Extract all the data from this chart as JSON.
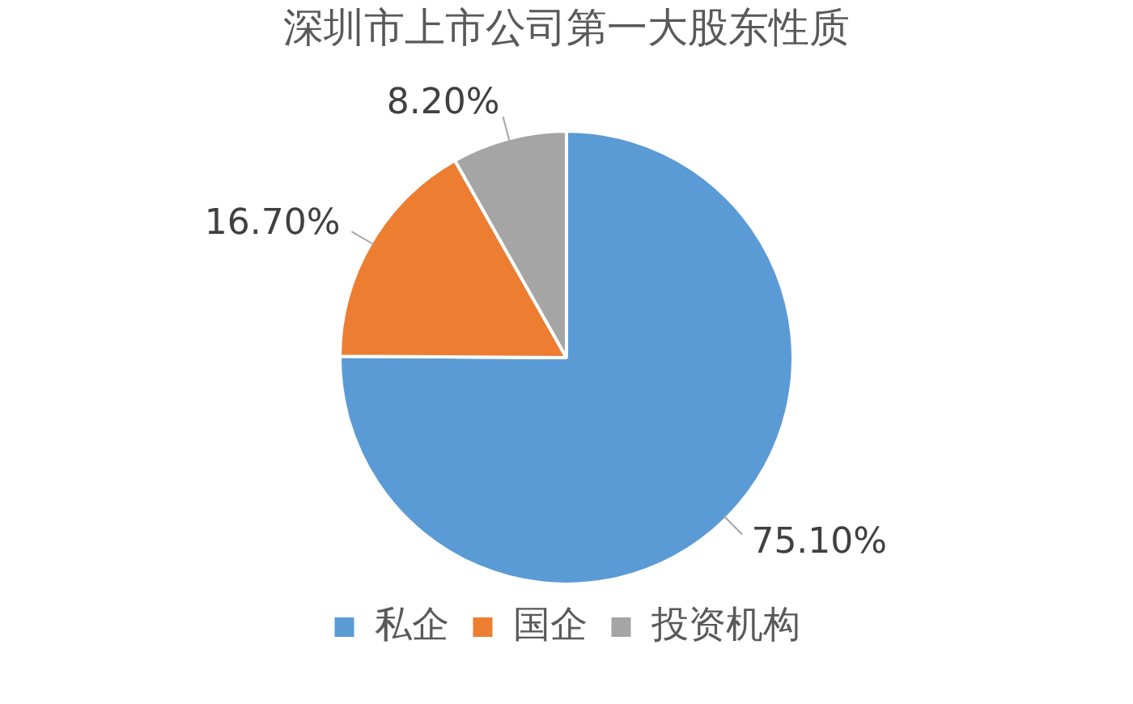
{
  "chart_data": {
    "type": "pie",
    "title": "深圳市上市公司第一大股东性质",
    "categories": [
      "私企",
      "国企",
      "投资机构"
    ],
    "values": [
      75.1,
      16.7,
      8.2
    ],
    "colors": [
      "#5b9bd5",
      "#ed7d31",
      "#a5a5a5"
    ],
    "value_labels": [
      "75.10%",
      "16.70%",
      "8.20%"
    ],
    "legend": "bottom"
  }
}
